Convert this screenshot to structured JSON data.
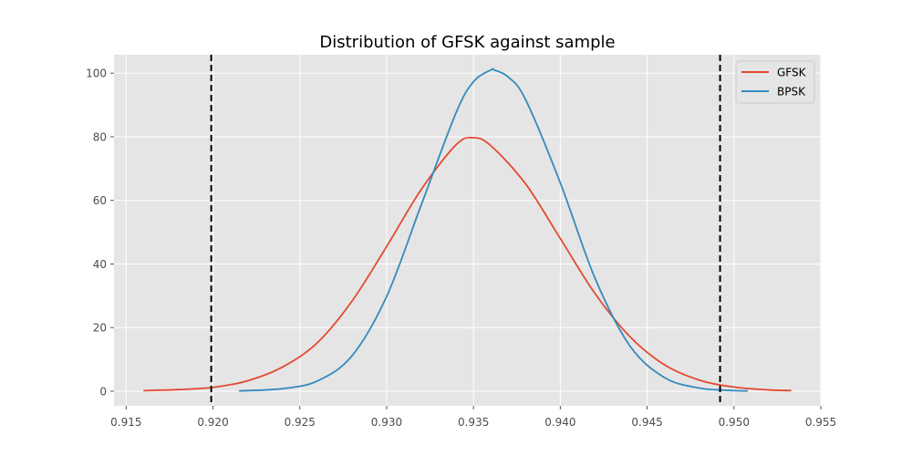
{
  "chart_data": {
    "type": "line",
    "title": "Distribution of GFSK against sample",
    "xlabel": "",
    "ylabel": "",
    "xlim": [
      0.9143,
      0.955
    ],
    "ylim": [
      -4.6,
      105.8
    ],
    "xticks": [
      "0.915",
      "0.920",
      "0.925",
      "0.930",
      "0.935",
      "0.940",
      "0.945",
      "0.950",
      "0.955"
    ],
    "xtick_values": [
      0.915,
      0.92,
      0.925,
      0.93,
      0.935,
      0.94,
      0.945,
      0.95,
      0.955
    ],
    "yticks": [
      "0",
      "20",
      "40",
      "60",
      "80",
      "100"
    ],
    "ytick_values": [
      0,
      20,
      40,
      60,
      80,
      100
    ],
    "grid": true,
    "background": "#e5e5e5",
    "legend_position": "top-right",
    "series": [
      {
        "name": "GFSK",
        "color": "#e24a33",
        "x": [
          0.916,
          0.918,
          0.92,
          0.922,
          0.924,
          0.926,
          0.928,
          0.93,
          0.932,
          0.934,
          0.935,
          0.936,
          0.938,
          0.94,
          0.942,
          0.944,
          0.946,
          0.948,
          0.95,
          0.952,
          0.9533
        ],
        "y": [
          0.2,
          0.5,
          1.2,
          3.3,
          7.6,
          15.2,
          28.3,
          45.5,
          63.5,
          77.5,
          79.7,
          77.2,
          65.2,
          48.0,
          30.7,
          17.2,
          8.3,
          3.5,
          1.3,
          0.4,
          0.2
        ]
      },
      {
        "name": "BPSK",
        "color": "#348abd",
        "x": [
          0.9215,
          0.924,
          0.926,
          0.928,
          0.93,
          0.932,
          0.934,
          0.935,
          0.936,
          0.9362,
          0.937,
          0.938,
          0.94,
          0.942,
          0.944,
          0.946,
          0.948,
          0.95,
          0.9508
        ],
        "y": [
          0.1,
          0.8,
          3.2,
          11.1,
          29.8,
          58.7,
          87.6,
          97.3,
          101.0,
          101.0,
          98.8,
          91.7,
          65.5,
          35.5,
          14.3,
          4.3,
          1.0,
          0.2,
          0.1
        ]
      }
    ],
    "vlines": [
      {
        "x": 0.9199,
        "color": "#000000",
        "style": "dashed"
      },
      {
        "x": 0.9492,
        "color": "#000000",
        "style": "dashed"
      }
    ]
  }
}
